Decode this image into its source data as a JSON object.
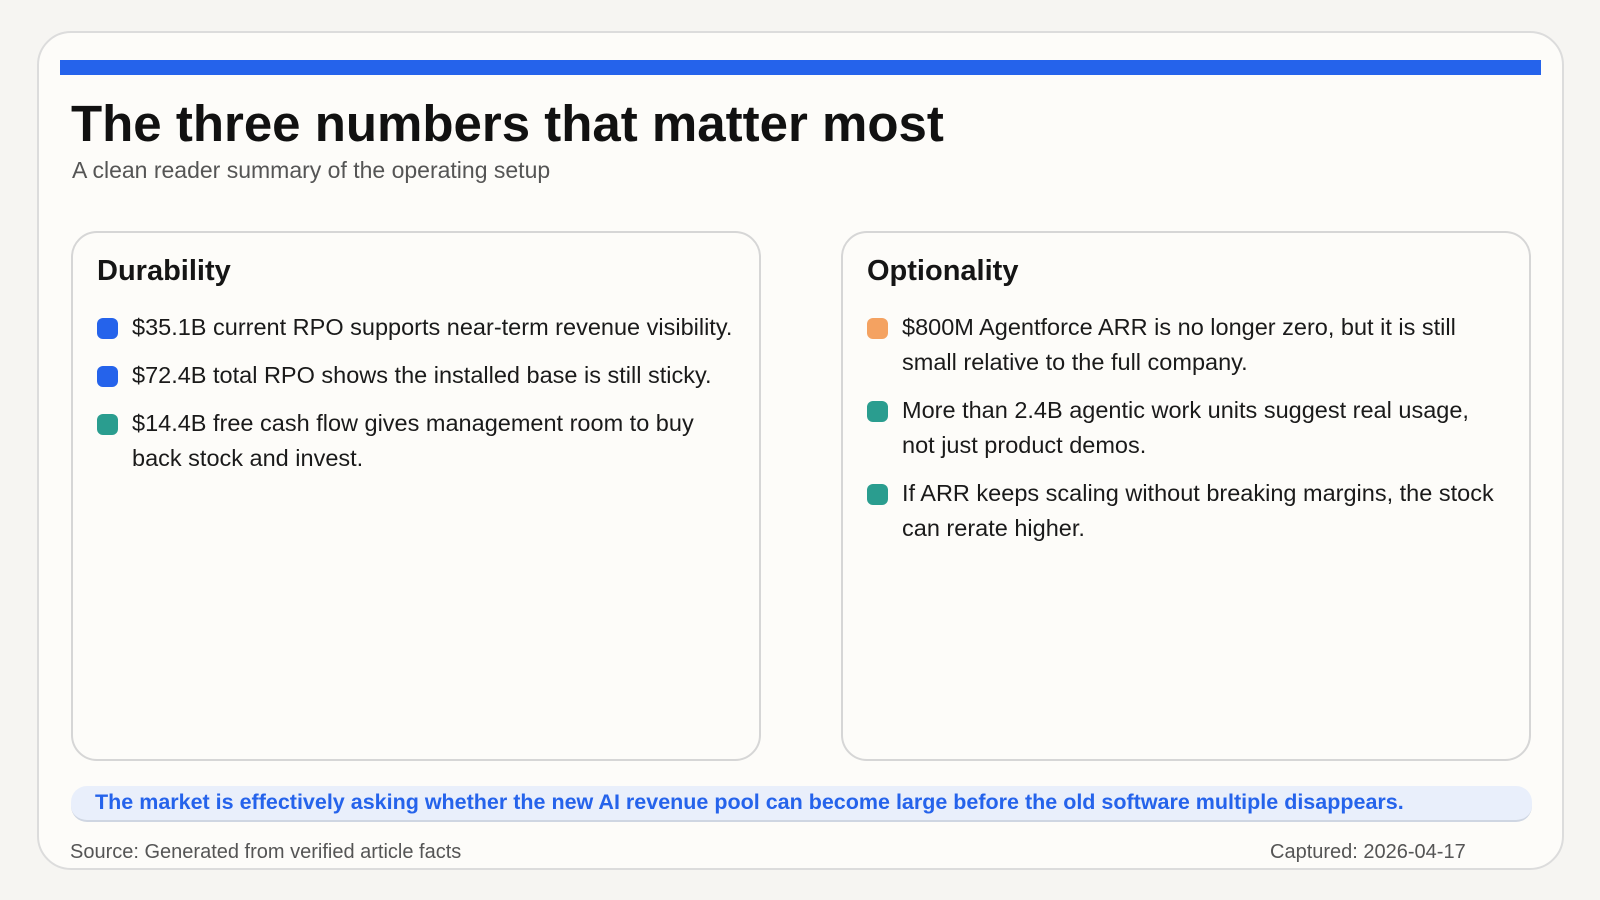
{
  "header": {
    "title": "The three numbers that matter most",
    "subtitle": "A clean reader summary of the operating setup"
  },
  "colors": {
    "accent": "#2563eb",
    "teal": "#2a9d8f",
    "orange": "#f4a261"
  },
  "cards": [
    {
      "title": "Durability",
      "items": [
        {
          "text": "$35.1B current RPO supports near-term revenue visibility.",
          "color": "#2563eb"
        },
        {
          "text": "$72.4B total RPO shows the installed base is still sticky.",
          "color": "#2563eb"
        },
        {
          "text": "$14.4B free cash flow gives management room to buy back stock and invest.",
          "color": "#2a9d8f"
        }
      ]
    },
    {
      "title": "Optionality",
      "items": [
        {
          "text": "$800M Agentforce ARR is no longer zero, but it is still small relative to the full company.",
          "color": "#f4a261"
        },
        {
          "text": "More than 2.4B agentic work units suggest real usage, not just product demos.",
          "color": "#2a9d8f"
        },
        {
          "text": "If ARR keeps scaling without breaking margins, the stock can rerate higher.",
          "color": "#2a9d8f"
        }
      ]
    }
  ],
  "banner": "The market is effectively asking whether the new AI revenue pool can become large before the old software multiple disappears.",
  "footer": {
    "source": "Source: Generated from verified article facts",
    "captured": "Captured: 2026-04-17"
  }
}
